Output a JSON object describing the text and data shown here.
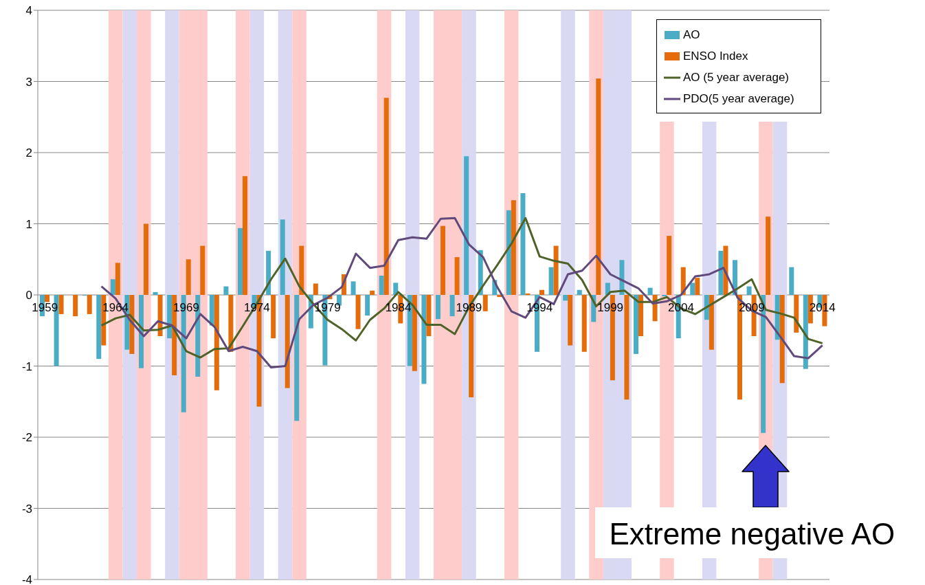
{
  "chart_data": {
    "type": "bar",
    "x": [
      1959,
      1960,
      1961,
      1962,
      1963,
      1964,
      1965,
      1966,
      1967,
      1968,
      1969,
      1970,
      1971,
      1972,
      1973,
      1974,
      1975,
      1976,
      1977,
      1978,
      1979,
      1980,
      1981,
      1982,
      1983,
      1984,
      1985,
      1986,
      1987,
      1988,
      1989,
      1990,
      1991,
      1992,
      1993,
      1994,
      1995,
      1996,
      1997,
      1998,
      1999,
      2000,
      2001,
      2002,
      2003,
      2004,
      2005,
      2006,
      2007,
      2008,
      2009,
      2010,
      2011,
      2012,
      2013,
      2014
    ],
    "series": [
      {
        "name": "AO",
        "color": "#4bacc6",
        "values": [
          -0.3,
          -1.0,
          0,
          -0.01,
          -0.9,
          0.22,
          -0.77,
          -1.03,
          0.04,
          -0.61,
          -1.65,
          -1.15,
          -0.43,
          0.12,
          0.94,
          -0.17,
          0.62,
          1.06,
          -1.77,
          -0.47,
          -0.99,
          -0.15,
          0.19,
          -0.29,
          0.27,
          0.17,
          -1.0,
          -1.25,
          -0.34,
          -0.3,
          1.95,
          0.63,
          0.21,
          1.19,
          1.43,
          -0.8,
          0.39,
          -0.08,
          0.07,
          -0.38,
          0.17,
          0.49,
          -0.83,
          0.1,
          -0.02,
          -0.61,
          0.17,
          -0.35,
          0.62,
          0.49,
          0.12,
          -1.94,
          -0.63,
          0.39,
          -1.04,
          -0.18
        ]
      },
      {
        "name": "ENSO Index",
        "color": "#e46c0a",
        "values": [
          -0.1,
          -0.27,
          -0.3,
          -0.27,
          -0.71,
          0.45,
          -0.83,
          1.0,
          -0.58,
          -1.13,
          0.5,
          0.69,
          -1.34,
          -0.8,
          1.67,
          -1.57,
          -0.61,
          -1.31,
          0.69,
          0.16,
          -0.06,
          0.29,
          -0.48,
          0.06,
          2.77,
          -0.4,
          -1.07,
          -0.58,
          0.97,
          0.53,
          -1.44,
          -0.23,
          -0.03,
          1.33,
          0.02,
          0.07,
          0.69,
          -0.71,
          -0.8,
          3.04,
          -1.2,
          -1.47,
          -0.58,
          -0.37,
          0.83,
          0.39,
          0.24,
          -0.77,
          0.69,
          -1.47,
          -0.58,
          1.1,
          -1.24,
          -0.53,
          -0.4,
          -0.44
        ]
      },
      {
        "name": "AO (5 year average)",
        "type": "line",
        "color": "#4f6228",
        "values": [
          null,
          null,
          null,
          null,
          -0.43,
          -0.33,
          -0.28,
          -0.5,
          -0.49,
          -0.43,
          -0.79,
          -0.88,
          -0.76,
          -0.75,
          -0.44,
          -0.12,
          0.22,
          0.51,
          0.12,
          -0.13,
          -0.35,
          -0.48,
          -0.64,
          -0.35,
          -0.19,
          0.04,
          -0.14,
          -0.42,
          -0.42,
          -0.55,
          -0.17,
          0.13,
          0.42,
          0.72,
          1.08,
          0.54,
          0.48,
          0.44,
          0.21,
          -0.16,
          0.04,
          0.06,
          -0.1,
          -0.1,
          -0.03,
          -0.19,
          -0.27,
          -0.15,
          -0.03,
          0.09,
          0.22,
          -0.21,
          -0.26,
          -0.32,
          -0.62,
          -0.68
        ]
      },
      {
        "name": "PDO(5 year average)",
        "type": "line",
        "color": "#604a7b",
        "values": [
          null,
          null,
          null,
          null,
          0.12,
          -0.05,
          -0.35,
          -0.58,
          -0.37,
          -0.43,
          -0.61,
          -0.27,
          -0.45,
          -0.79,
          -0.73,
          -0.79,
          -1.02,
          -1.0,
          -0.34,
          -0.14,
          -0.04,
          0.11,
          0.58,
          0.38,
          0.41,
          0.77,
          0.81,
          0.79,
          1.07,
          1.08,
          0.71,
          0.53,
          0.11,
          -0.23,
          -0.32,
          -0.03,
          -0.13,
          0.29,
          0.34,
          0.55,
          0.29,
          0.19,
          0.09,
          -0.12,
          -0.09,
          0.0,
          0.26,
          0.29,
          0.38,
          -0.04,
          -0.22,
          -0.31,
          -0.58,
          -0.86,
          -0.89,
          -0.71
        ]
      }
    ],
    "xlim": [
      1958.5,
      2014.5
    ],
    "xticks": [
      1959,
      1964,
      1969,
      1974,
      1979,
      1984,
      1989,
      1994,
      1999,
      2004,
      2009,
      2014
    ],
    "ylim": [
      -4,
      4
    ],
    "yticks": [
      -4,
      -3,
      -2,
      -1,
      0,
      1,
      2,
      3,
      4
    ],
    "grid": "y",
    "legend": "top right",
    "bands": [
      {
        "axis": "x",
        "from": 1963.5,
        "to": 1964.5,
        "color": "#ffcccc"
      },
      {
        "axis": "x",
        "from": 1964.5,
        "to": 1965.5,
        "color": "#d9d9f3"
      },
      {
        "axis": "x",
        "from": 1965.5,
        "to": 1966.5,
        "color": "#ffcccc"
      },
      {
        "axis": "x",
        "from": 1967.5,
        "to": 1968.5,
        "color": "#d9d9f3"
      },
      {
        "axis": "x",
        "from": 1968.5,
        "to": 1970.5,
        "color": "#ffcccc"
      },
      {
        "axis": "x",
        "from": 1972.5,
        "to": 1973.5,
        "color": "#ffcccc"
      },
      {
        "axis": "x",
        "from": 1973.5,
        "to": 1974.5,
        "color": "#d9d9f3"
      },
      {
        "axis": "x",
        "from": 1975.5,
        "to": 1976.5,
        "color": "#d9d9f3"
      },
      {
        "axis": "x",
        "from": 1976.5,
        "to": 1977.5,
        "color": "#ffcccc"
      },
      {
        "axis": "x",
        "from": 1982.5,
        "to": 1983.5,
        "color": "#ffcccc"
      },
      {
        "axis": "x",
        "from": 1984.5,
        "to": 1985.5,
        "color": "#d9d9f3"
      },
      {
        "axis": "x",
        "from": 1986.5,
        "to": 1988.5,
        "color": "#ffcccc"
      },
      {
        "axis": "x",
        "from": 1988.5,
        "to": 1989.5,
        "color": "#d9d9f3"
      },
      {
        "axis": "x",
        "from": 1991.5,
        "to": 1992.5,
        "color": "#ffcccc"
      },
      {
        "axis": "x",
        "from": 1995.5,
        "to": 1996.5,
        "color": "#d9d9f3"
      },
      {
        "axis": "x",
        "from": 1997.5,
        "to": 1998.5,
        "color": "#ffcccc"
      },
      {
        "axis": "x",
        "from": 1998.5,
        "to": 2000.5,
        "color": "#d9d9f3"
      },
      {
        "axis": "x",
        "from": 2002.5,
        "to": 2003.5,
        "color": "#ffcccc"
      },
      {
        "axis": "x",
        "from": 2005.5,
        "to": 2006.5,
        "color": "#d9d9f3"
      },
      {
        "axis": "x",
        "from": 2009.5,
        "to": 2010.5,
        "color": "#ffcccc"
      },
      {
        "axis": "x",
        "from": 2010.5,
        "to": 2011.5,
        "color": "#d9d9f3"
      }
    ],
    "annotations": [
      {
        "text": "Extreme negative AO",
        "x": 2010,
        "y": -1.94
      }
    ]
  }
}
